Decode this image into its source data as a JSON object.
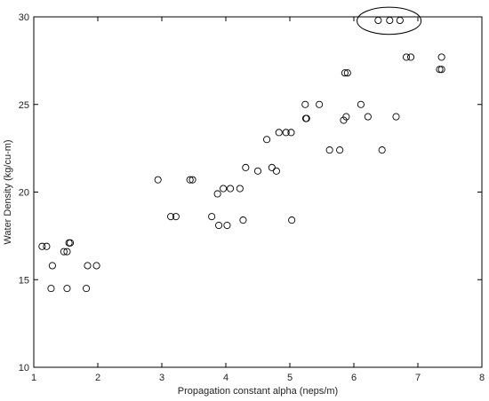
{
  "chart_data": {
    "type": "scatter",
    "title": "",
    "xlabel": "Propagation constant alpha (neps/m)",
    "ylabel": "Water Density (kg/cu-m)",
    "xlim": [
      1,
      8
    ],
    "ylim": [
      10,
      30
    ],
    "x_ticks": [
      "1",
      "2",
      "3",
      "4",
      "5",
      "6",
      "7",
      "8"
    ],
    "y_ticks": [
      "10",
      "15",
      "20",
      "25",
      "30"
    ],
    "grid": false,
    "legend": "none",
    "marker": "open-circle",
    "colors": {
      "marker": "#000000",
      "axes": "#000000",
      "background": "#ffffff"
    },
    "points": [
      {
        "x": 1.13,
        "y": 16.9
      },
      {
        "x": 1.2,
        "y": 16.9
      },
      {
        "x": 1.27,
        "y": 14.5
      },
      {
        "x": 1.29,
        "y": 15.8
      },
      {
        "x": 1.47,
        "y": 16.6
      },
      {
        "x": 1.52,
        "y": 16.6
      },
      {
        "x": 1.55,
        "y": 17.1
      },
      {
        "x": 1.57,
        "y": 17.1
      },
      {
        "x": 1.52,
        "y": 14.5
      },
      {
        "x": 1.82,
        "y": 14.5
      },
      {
        "x": 1.84,
        "y": 15.8
      },
      {
        "x": 1.98,
        "y": 15.8
      },
      {
        "x": 2.94,
        "y": 20.7
      },
      {
        "x": 3.14,
        "y": 18.6
      },
      {
        "x": 3.22,
        "y": 18.6
      },
      {
        "x": 3.44,
        "y": 20.7
      },
      {
        "x": 3.48,
        "y": 20.7
      },
      {
        "x": 3.78,
        "y": 18.6
      },
      {
        "x": 3.87,
        "y": 19.9
      },
      {
        "x": 3.89,
        "y": 18.1
      },
      {
        "x": 3.96,
        "y": 20.2
      },
      {
        "x": 4.02,
        "y": 18.1
      },
      {
        "x": 4.07,
        "y": 20.2
      },
      {
        "x": 4.22,
        "y": 20.2
      },
      {
        "x": 4.27,
        "y": 18.4
      },
      {
        "x": 4.31,
        "y": 21.4
      },
      {
        "x": 4.5,
        "y": 21.2
      },
      {
        "x": 4.64,
        "y": 23.0
      },
      {
        "x": 4.72,
        "y": 21.4
      },
      {
        "x": 4.79,
        "y": 21.2
      },
      {
        "x": 4.83,
        "y": 23.4
      },
      {
        "x": 4.94,
        "y": 23.4
      },
      {
        "x": 5.02,
        "y": 23.4
      },
      {
        "x": 5.03,
        "y": 18.4
      },
      {
        "x": 5.24,
        "y": 25.0
      },
      {
        "x": 5.25,
        "y": 24.2
      },
      {
        "x": 5.26,
        "y": 24.2
      },
      {
        "x": 5.46,
        "y": 25.0
      },
      {
        "x": 5.62,
        "y": 22.4
      },
      {
        "x": 5.78,
        "y": 22.4
      },
      {
        "x": 5.84,
        "y": 24.1
      },
      {
        "x": 5.86,
        "y": 26.8
      },
      {
        "x": 5.9,
        "y": 26.8
      },
      {
        "x": 5.88,
        "y": 24.3
      },
      {
        "x": 6.11,
        "y": 25.0
      },
      {
        "x": 6.22,
        "y": 24.3
      },
      {
        "x": 6.38,
        "y": 29.8
      },
      {
        "x": 6.44,
        "y": 22.4
      },
      {
        "x": 6.56,
        "y": 29.8
      },
      {
        "x": 6.66,
        "y": 24.3
      },
      {
        "x": 6.72,
        "y": 29.8
      },
      {
        "x": 6.82,
        "y": 27.7
      },
      {
        "x": 6.89,
        "y": 27.7
      },
      {
        "x": 7.34,
        "y": 27.0
      },
      {
        "x": 7.37,
        "y": 27.0
      },
      {
        "x": 7.37,
        "y": 27.7
      }
    ],
    "annotations": [
      {
        "type": "ellipse",
        "x_range": [
          6.05,
          7.05
        ],
        "y_range": [
          29.0,
          30.55
        ]
      }
    ]
  }
}
